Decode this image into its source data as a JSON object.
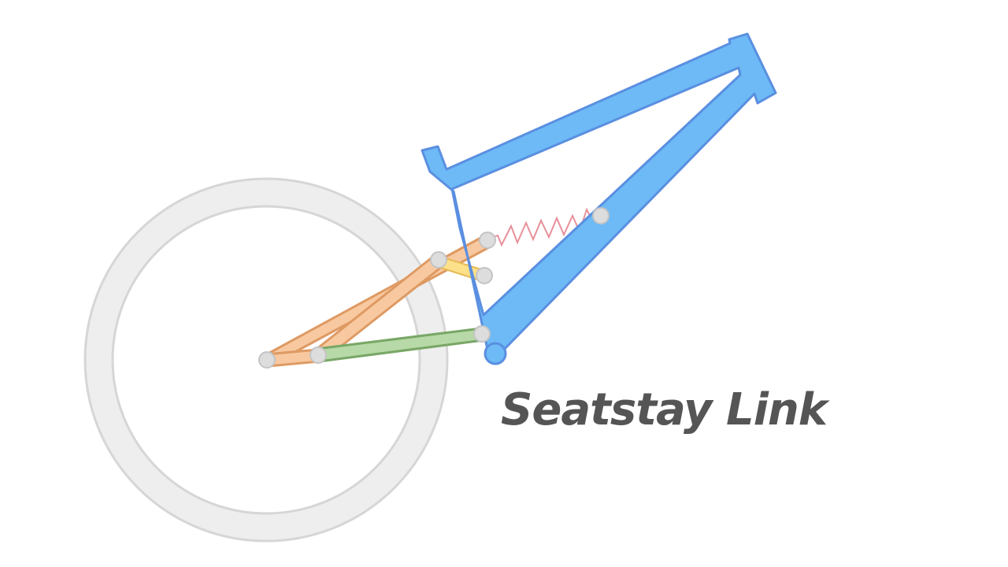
{
  "caption": "Seatstay Link",
  "colors": {
    "background": "#ffffff",
    "wheel_fill": "#eeeeee",
    "wheel_stroke": "#d6d6d6",
    "frame_fill": "#6dbaf6",
    "frame_stroke": "#5a8fe0",
    "seatstay_fill": "#f8c9a0",
    "seatstay_stroke": "#de9a63",
    "link_fill": "#fde08a",
    "link_stroke": "#e6bb55",
    "chainstay_fill": "#b7d9a8",
    "chainstay_stroke": "#79a766",
    "spring_stroke": "#e8909a",
    "pivot_fill": "#dddddd",
    "pivot_stroke": "#c4c4c4",
    "caption": "#555555"
  }
}
